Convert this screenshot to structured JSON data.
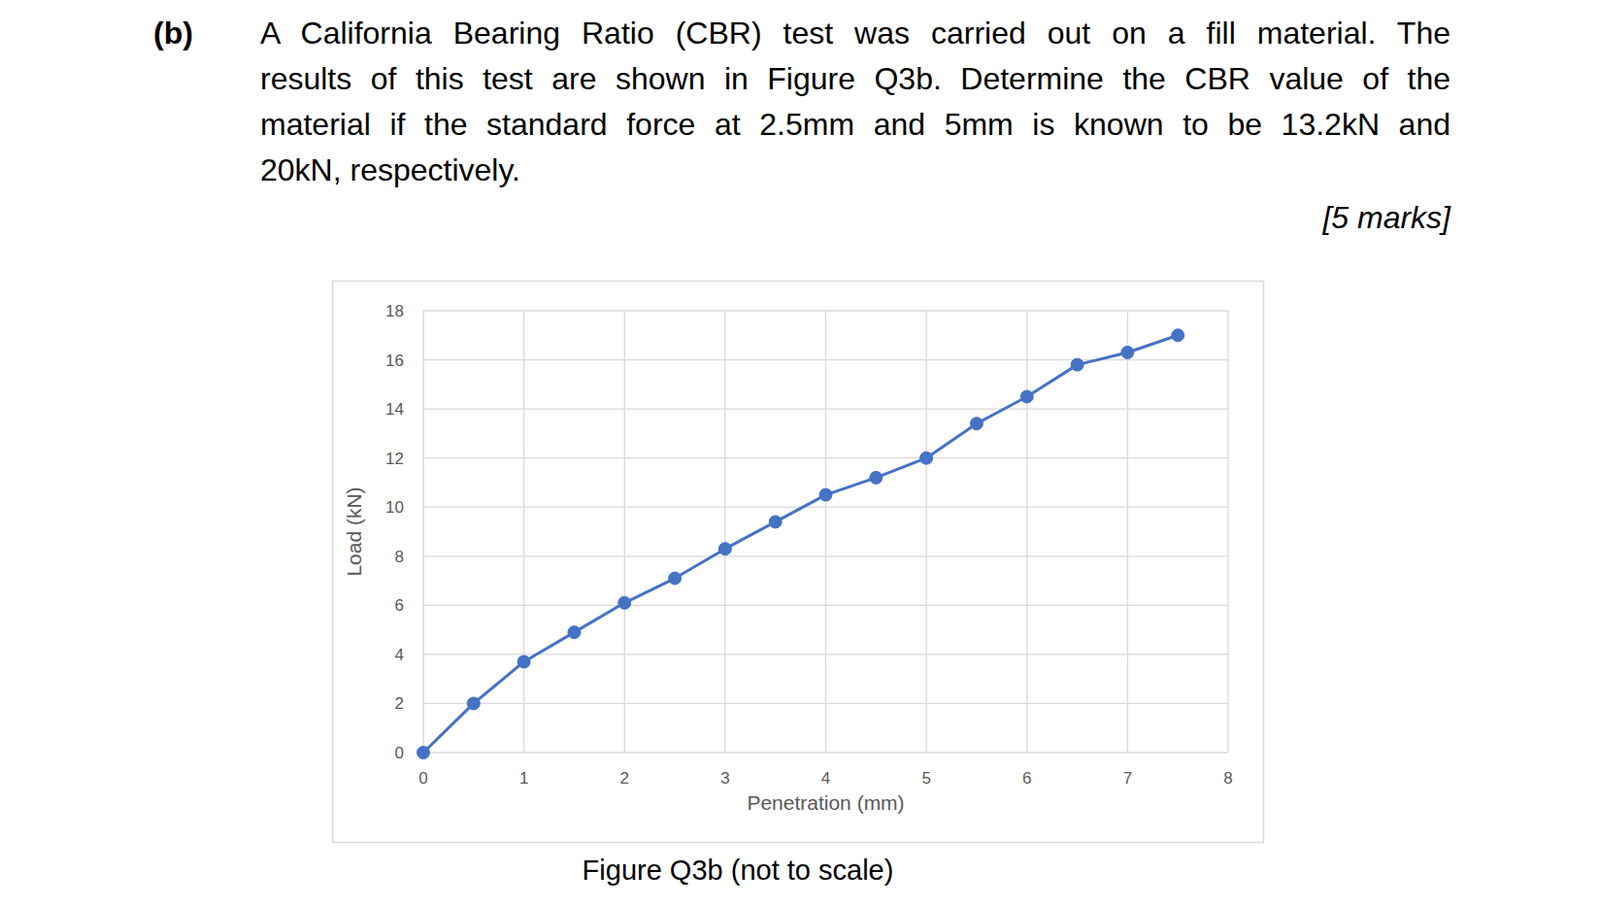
{
  "question": {
    "label": "(b)",
    "lines": [
      "A California Bearing Ratio (CBR) test was carried out on a fill material. The",
      "results of this test are shown in Figure Q3b. Determine the CBR value of the",
      "material if the standard force at 2.5mm and 5mm is known to be 13.2kN and",
      "20kN, respectively."
    ],
    "marks": "[5 marks]"
  },
  "chart_data": {
    "type": "line",
    "x_label": "Penetration (mm)",
    "y_label": "Load (kN)",
    "x": [
      0,
      0.5,
      1,
      1.5,
      2,
      2.5,
      3,
      3.5,
      4,
      4.5,
      5,
      5.5,
      6,
      6.5,
      7,
      7.5
    ],
    "series": [
      {
        "color": "#4472c4",
        "marker": "circle",
        "values": [
          0,
          2.0,
          3.7,
          4.9,
          6.1,
          7.1,
          8.3,
          9.4,
          10.5,
          11.2,
          12.0,
          13.4,
          14.5,
          15.8,
          16.3,
          17.0
        ]
      }
    ],
    "xlim": [
      0,
      8
    ],
    "ylim": [
      0,
      18
    ],
    "xticks": [
      0,
      1,
      2,
      3,
      4,
      5,
      6,
      7,
      8
    ],
    "yticks": [
      0,
      2,
      4,
      6,
      8,
      10,
      12,
      14,
      16,
      18
    ],
    "grid": true
  },
  "caption": "Figure Q3b (not to scale)"
}
